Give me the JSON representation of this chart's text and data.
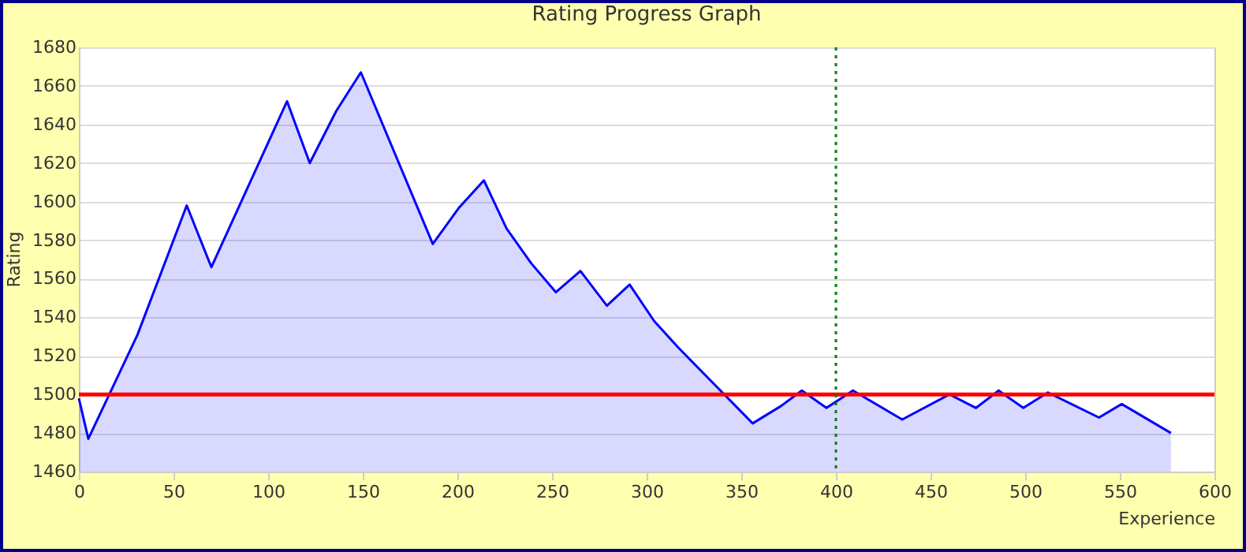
{
  "chart_data": {
    "type": "area",
    "title": "Rating Progress Graph",
    "xlabel": "Experience",
    "ylabel": "Rating",
    "x": [
      0,
      5,
      31,
      57,
      70,
      110,
      122,
      136,
      149,
      187,
      201,
      214,
      226,
      239,
      252,
      265,
      279,
      291,
      304,
      317,
      356,
      371,
      382,
      395,
      409,
      435,
      460,
      474,
      486,
      499,
      512,
      539,
      551,
      577
    ],
    "series": [
      {
        "color": "#0000ff",
        "values": [
          1498,
          1477,
          1531,
          1598,
          1566,
          1652,
          1620,
          1647,
          1667,
          1578,
          1597,
          1611,
          1586,
          1568,
          1553,
          1564,
          1546,
          1557,
          1538,
          1524,
          1485,
          1494,
          1502,
          1493,
          1502,
          1487,
          1500,
          1493,
          1502,
          1493,
          1501,
          1488,
          1495,
          1480
        ]
      }
    ],
    "xlim": [
      0,
      600
    ],
    "ylim": [
      1460,
      1680
    ],
    "xticks": [
      0,
      50,
      100,
      150,
      200,
      250,
      300,
      350,
      400,
      450,
      500,
      550,
      600
    ],
    "yticks": [
      1460,
      1480,
      1500,
      1520,
      1540,
      1560,
      1580,
      1600,
      1620,
      1640,
      1660,
      1680
    ],
    "grid": "y",
    "ref_lines": [
      {
        "axis": "y",
        "value": 1500,
        "color": "#ff0000",
        "line_style": "solid"
      },
      {
        "axis": "x",
        "value": 400,
        "color": "#008000",
        "line_style": "dotted"
      }
    ]
  }
}
